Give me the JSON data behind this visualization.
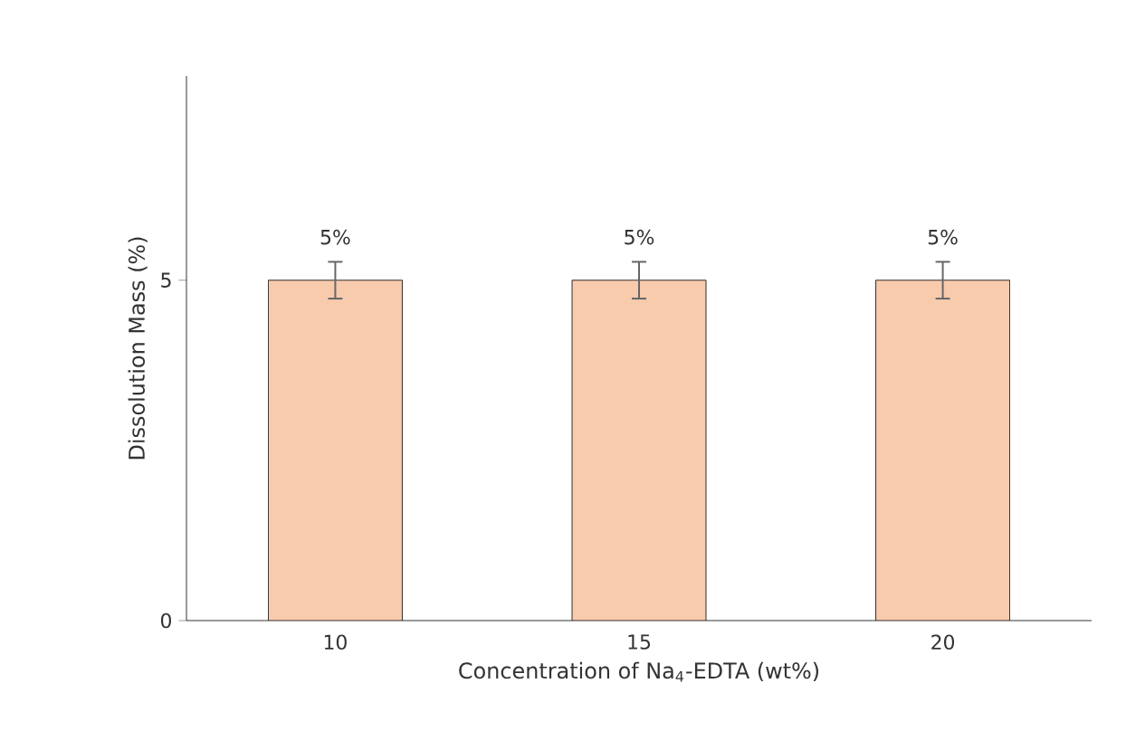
{
  "chart_data": {
    "type": "bar",
    "xlabel": "Concentration of Na$_{4}$-EDTA (wt%)",
    "ylabel": "Dissolution Mass (%)",
    "categories": [
      "10",
      "15",
      "20"
    ],
    "values": [
      5,
      5,
      5
    ],
    "errors": [
      0.27,
      0.27,
      0.27
    ],
    "value_labels": [
      "5%",
      "5%",
      "5%"
    ],
    "color": "#f8cbad",
    "ylim": [
      0,
      8
    ],
    "yticks": [
      0,
      5
    ]
  }
}
